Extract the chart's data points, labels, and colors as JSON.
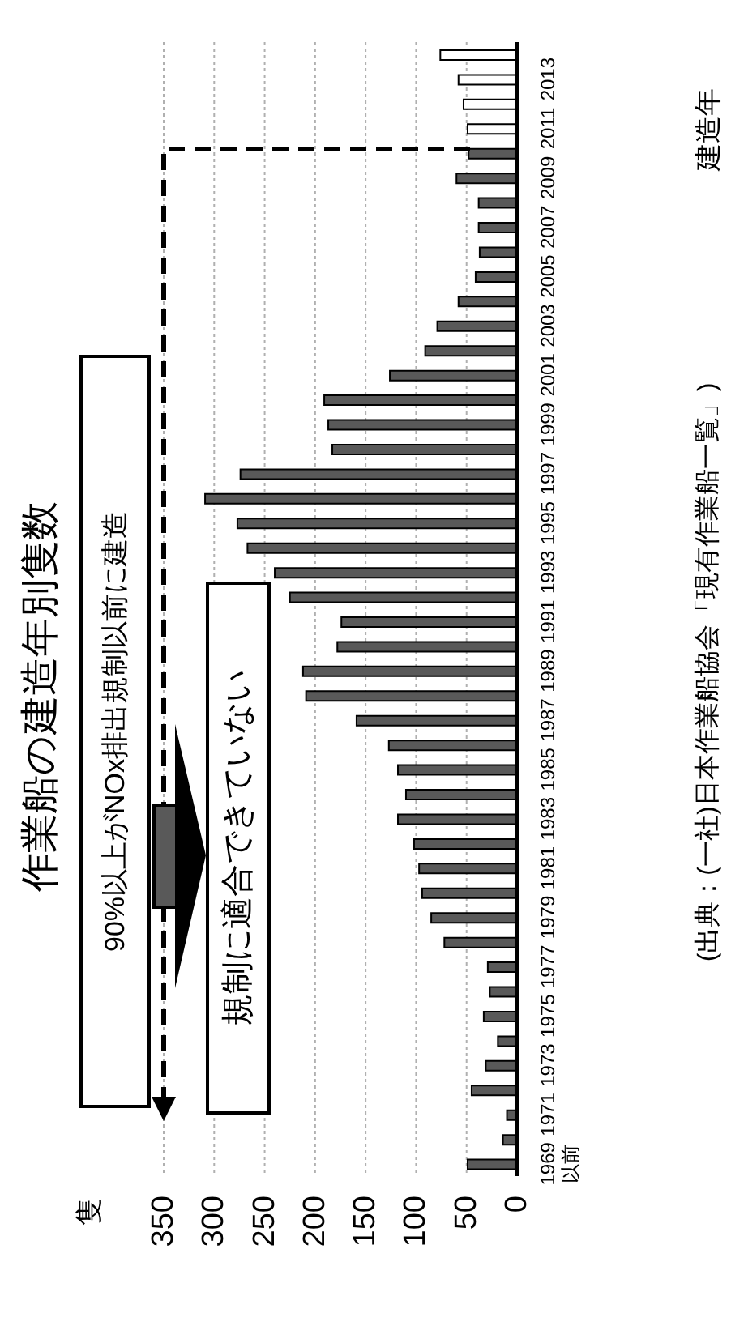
{
  "chart_data": {
    "type": "bar",
    "orientation": "horizontal",
    "title": "作業船の建造年別隻数",
    "ylabel": "建造年",
    "categories": [
      null,
      "2013",
      null,
      "2011",
      null,
      "2009",
      null,
      "2007",
      null,
      "2005",
      null,
      "2003",
      null,
      "2001",
      null,
      "1999",
      null,
      "1997",
      null,
      "1995",
      null,
      "1993",
      null,
      "1991",
      null,
      "1989",
      null,
      "1987",
      null,
      "1985",
      null,
      "1983",
      null,
      "1981",
      null,
      "1979",
      null,
      "1977",
      null,
      "1975",
      null,
      "1973",
      null,
      "1971",
      null,
      "1969以前"
    ],
    "values": [
      76,
      58,
      53,
      49,
      48,
      60,
      38,
      38,
      37,
      41,
      58,
      79,
      91,
      126,
      191,
      187,
      183,
      274,
      309,
      277,
      267,
      240,
      225,
      174,
      178,
      212,
      209,
      159,
      127,
      118,
      110,
      118,
      102,
      97,
      94,
      85,
      72,
      29,
      27,
      33,
      19,
      31,
      45,
      10,
      14,
      49
    ],
    "colors": [
      "#ffffff",
      "#ffffff",
      "#ffffff",
      "#ffffff",
      "#595959",
      "#595959",
      "#595959",
      "#595959",
      "#595959",
      "#595959",
      "#595959",
      "#595959",
      "#595959",
      "#595959",
      "#595959",
      "#595959",
      "#595959",
      "#595959",
      "#595959",
      "#595959",
      "#595959",
      "#595959",
      "#595959",
      "#595959",
      "#595959",
      "#595959",
      "#595959",
      "#595959",
      "#595959",
      "#595959",
      "#595959",
      "#595959",
      "#595959",
      "#595959",
      "#595959",
      "#595959",
      "#595959",
      "#595959",
      "#595959",
      "#595959",
      "#595959",
      "#595959",
      "#595959",
      "#595959",
      "#595959",
      "#595959"
    ],
    "xlim": [
      350,
      0
    ],
    "xticks": [
      0,
      50,
      100,
      150,
      200,
      250,
      300,
      350
    ],
    "grid": "x",
    "annotations": [
      "90%以上がNOx排出規制以前に建造",
      "規制に適合できていない",
      "(出典：(一社)日本作業船協会「現有作業船一覧」)",
      "隻"
    ]
  }
}
